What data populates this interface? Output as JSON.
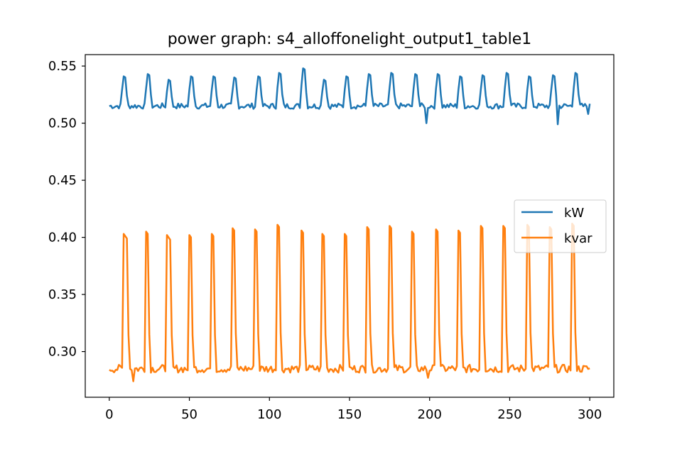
{
  "chart_data": {
    "type": "line",
    "title": "power graph: s4_alloffonelight_output1_table1",
    "xlabel": "",
    "ylabel": "",
    "xlim": [
      -15,
      315
    ],
    "ylim": [
      0.26,
      0.56
    ],
    "xticks": [
      0,
      50,
      100,
      150,
      200,
      250,
      300
    ],
    "xtick_labels": [
      "0",
      "50",
      "100",
      "150",
      "200",
      "250",
      "300"
    ],
    "yticks": [
      0.3,
      0.35,
      0.4,
      0.45,
      0.5,
      0.55
    ],
    "ytick_labels": [
      "0.30",
      "0.35",
      "0.40",
      "0.45",
      "0.50",
      "0.55"
    ],
    "grid": false,
    "legend_position": "center-right",
    "series": [
      {
        "name": "kW",
        "color": "#1f77b4",
        "baseline": 0.515,
        "x": [
          0,
          300
        ],
        "peaks": [
          {
            "x": 9,
            "y": 0.541
          },
          {
            "x": 24,
            "y": 0.543
          },
          {
            "x": 37,
            "y": 0.538
          },
          {
            "x": 51,
            "y": 0.541
          },
          {
            "x": 65,
            "y": 0.541
          },
          {
            "x": 78,
            "y": 0.54
          },
          {
            "x": 93,
            "y": 0.541
          },
          {
            "x": 106,
            "y": 0.544
          },
          {
            "x": 121,
            "y": 0.548
          },
          {
            "x": 134,
            "y": 0.538
          },
          {
            "x": 148,
            "y": 0.541
          },
          {
            "x": 162,
            "y": 0.543
          },
          {
            "x": 176,
            "y": 0.544
          },
          {
            "x": 191,
            "y": 0.543
          },
          {
            "x": 205,
            "y": 0.543
          },
          {
            "x": 219,
            "y": 0.541
          },
          {
            "x": 233,
            "y": 0.542
          },
          {
            "x": 248,
            "y": 0.544
          },
          {
            "x": 262,
            "y": 0.541
          },
          {
            "x": 277,
            "y": 0.542
          },
          {
            "x": 291,
            "y": 0.544
          }
        ],
        "dips": [
          {
            "x": 198,
            "y": 0.5
          },
          {
            "x": 280,
            "y": 0.499
          },
          {
            "x": 299,
            "y": 0.508
          }
        ]
      },
      {
        "name": "kvar",
        "color": "#ff7f0e",
        "baseline": 0.285,
        "x": [
          0,
          300
        ],
        "pulses": [
          {
            "x_start": 9,
            "x_end": 11,
            "y": 0.403
          },
          {
            "x_start": 23,
            "x_end": 24,
            "y": 0.405
          },
          {
            "x_start": 36,
            "x_end": 38,
            "y": 0.402
          },
          {
            "x_start": 50,
            "x_end": 51,
            "y": 0.402
          },
          {
            "x_start": 64,
            "x_end": 65,
            "y": 0.403
          },
          {
            "x_start": 77,
            "x_end": 78,
            "y": 0.408
          },
          {
            "x_start": 91,
            "x_end": 92,
            "y": 0.407
          },
          {
            "x_start": 105,
            "x_end": 106,
            "y": 0.411
          },
          {
            "x_start": 120,
            "x_end": 121,
            "y": 0.406
          },
          {
            "x_start": 133,
            "x_end": 134,
            "y": 0.403
          },
          {
            "x_start": 147,
            "x_end": 148,
            "y": 0.403
          },
          {
            "x_start": 161,
            "x_end": 162,
            "y": 0.409
          },
          {
            "x_start": 175,
            "x_end": 176,
            "y": 0.41
          },
          {
            "x_start": 189,
            "x_end": 190,
            "y": 0.405
          },
          {
            "x_start": 204,
            "x_end": 205,
            "y": 0.407
          },
          {
            "x_start": 218,
            "x_end": 219,
            "y": 0.406
          },
          {
            "x_start": 232,
            "x_end": 233,
            "y": 0.41
          },
          {
            "x_start": 246,
            "x_end": 247,
            "y": 0.41
          },
          {
            "x_start": 261,
            "x_end": 262,
            "y": 0.411
          },
          {
            "x_start": 275,
            "x_end": 276,
            "y": 0.409
          },
          {
            "x_start": 289,
            "x_end": 290,
            "y": 0.412
          }
        ],
        "dips": [
          {
            "x": 15,
            "y": 0.274
          },
          {
            "x": 199,
            "y": 0.277
          }
        ]
      }
    ]
  }
}
